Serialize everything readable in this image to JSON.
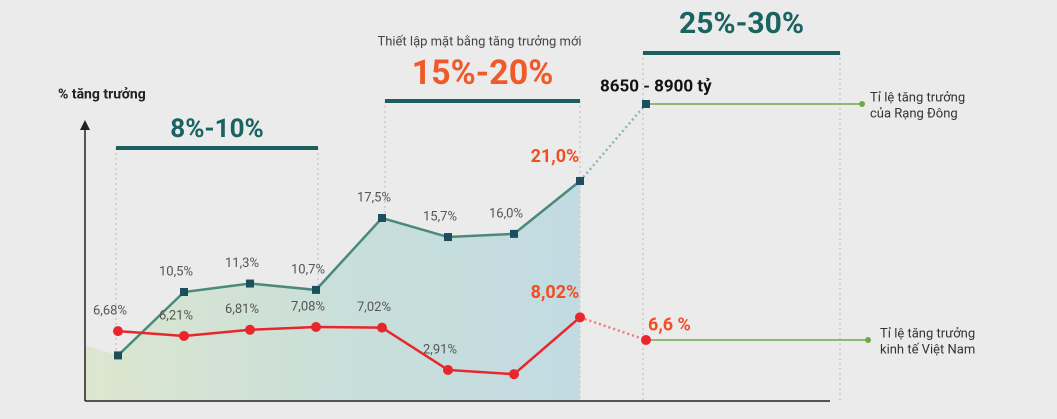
{
  "y_axis_label": "% tăng trưởng",
  "chart_data": {
    "type": "line",
    "series": [
      {
        "name_lines": [
          "Tỉ lệ tăng trưởng",
          "của Rạng Đông"
        ],
        "color": "#4a8a7a",
        "marker_color": "#1d4e5e",
        "marker": "square",
        "values": [
          4.5,
          10.5,
          11.3,
          10.7,
          17.5,
          15.7,
          16.0,
          21.0
        ],
        "value_labels": [
          null,
          "10,5%",
          "11,3%",
          "10,7%",
          "17,5%",
          "15,7%",
          "16,0%",
          "21,0%"
        ],
        "target_label": "8650 - 8900 tỷ"
      },
      {
        "name_lines": [
          "Tỉ lệ tăng trưởng",
          "kinh tế Việt Nam"
        ],
        "color": "#e8262b",
        "marker_color": "#e8262b",
        "marker": "circle",
        "values": [
          6.68,
          6.21,
          6.81,
          7.08,
          7.02,
          2.91,
          2.5,
          8.02
        ],
        "value_labels": [
          "6,68%",
          "6,21%",
          "6,81%",
          "7,08%",
          "7,02%",
          "2,91%",
          null,
          "8,02%"
        ],
        "target_value": 6.6,
        "target_label": "6,6 %"
      }
    ],
    "highlight_color": "#f04e23",
    "legend_color": "#6aaa4a",
    "bands": [
      {
        "label": "8%-10%",
        "color": "#1a6360"
      },
      {
        "subtitle": "Thiết lập mặt bằng tăng trưởng mới",
        "label": "15%-20%",
        "color": "#f05a28"
      },
      {
        "label": "25%-30%",
        "color": "#1a6360"
      }
    ]
  }
}
